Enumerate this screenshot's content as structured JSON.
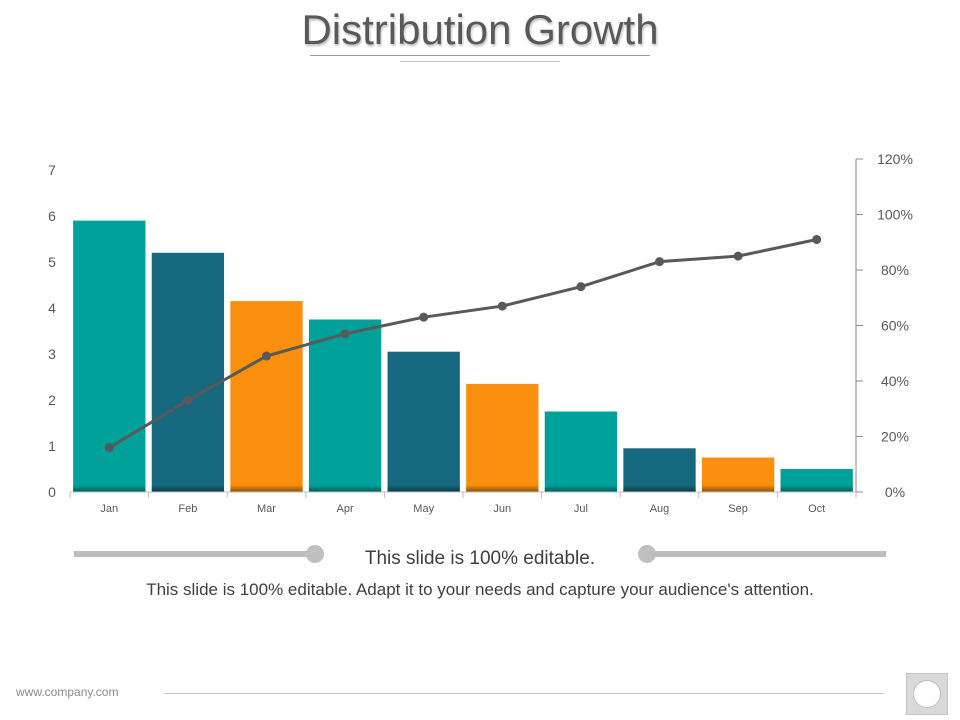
{
  "slide": {
    "title": "Distribution Growth",
    "editable_label": "This slide is 100% editable.",
    "description": "This slide is 100% editable. Adapt it to your needs and capture your audience's attention.",
    "footer_url": "www.company.com"
  },
  "chart_data": {
    "type": "bar",
    "categories": [
      "Jan",
      "Feb",
      "Mar",
      "Apr",
      "May",
      "Jun",
      "Jul",
      "Aug",
      "Sep",
      "Oct"
    ],
    "values": [
      5.9,
      5.2,
      4.15,
      3.75,
      3.05,
      2.35,
      1.75,
      0.95,
      0.75,
      0.5
    ],
    "bar_colors": [
      "#00A19A",
      "#16687F",
      "#F98F0C",
      "#00A19A",
      "#16687F",
      "#F98F0C",
      "#00A19A",
      "#16687F",
      "#F98F0C",
      "#00A19A"
    ],
    "line_values": [
      0.16,
      0.33,
      0.49,
      0.57,
      0.63,
      0.67,
      0.74,
      0.83,
      0.85,
      0.91
    ],
    "line_color": "#595959",
    "ylim": [
      0,
      7
    ],
    "yticks": [
      "0",
      "1",
      "2",
      "3",
      "4",
      "5",
      "6",
      "7"
    ],
    "y2lim": [
      0,
      1.2
    ],
    "y2ticks": [
      "0%",
      "20%",
      "40%",
      "60%",
      "80%",
      "100%",
      "120%"
    ],
    "grid": false,
    "legend": "none"
  }
}
